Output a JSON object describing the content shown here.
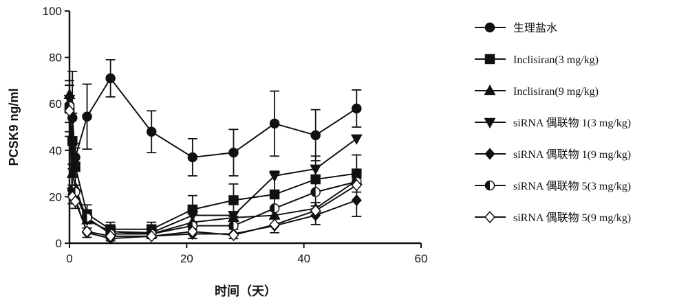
{
  "chart_data": {
    "type": "line",
    "title": "",
    "xlabel": "时间（天）",
    "ylabel": "PCSK9 ng/ml",
    "xlim": [
      0,
      60
    ],
    "ylim": [
      0,
      100
    ],
    "xticks": [
      0,
      20,
      40,
      60
    ],
    "yticks": [
      0,
      20,
      40,
      60,
      80,
      100
    ],
    "grid": false,
    "legend_position": "right",
    "x": [
      0,
      0.5,
      1,
      3,
      7,
      14,
      21,
      28,
      35,
      42,
      49
    ],
    "series": [
      {
        "name": "生理盐水",
        "marker": "circle-filled",
        "values": [
          58,
          54,
          37,
          54.5,
          71,
          48,
          37,
          39,
          51.5,
          46.5,
          58
        ],
        "error": [
          12,
          20,
          6,
          14,
          8,
          9,
          8,
          10,
          14,
          11,
          8
        ]
      },
      {
        "name": "Inclisiran(3 mg/kg)",
        "marker": "square-filled",
        "values": [
          58,
          44,
          33,
          12.5,
          6,
          6,
          14.5,
          18.5,
          21,
          27.5,
          30
        ],
        "error": [
          10,
          12,
          8,
          4,
          3,
          3,
          6,
          7,
          10,
          10,
          8
        ]
      },
      {
        "name": "Inclisiran(9 mg/kg)",
        "marker": "triangle-up-filled",
        "values": [
          64,
          30,
          24,
          10,
          5,
          4,
          9,
          11,
          12,
          15,
          27
        ]
      },
      {
        "name": "siRNA 偶联物 1(3 mg/kg)",
        "marker": "triangle-down-filled",
        "values": [
          62,
          22,
          21,
          10,
          5,
          4.5,
          12,
          12,
          29,
          32,
          45
        ]
      },
      {
        "name": "siRNA 偶联物 1(9 mg/kg)",
        "marker": "diamond-filled",
        "values": [
          60,
          21,
          19,
          4.5,
          2,
          3,
          4,
          4,
          7.5,
          12,
          18.5
        ],
        "error": [
          8,
          4,
          4,
          2,
          1,
          1,
          2,
          2,
          3,
          4,
          7
        ]
      },
      {
        "name": "siRNA 偶联物 5(3 mg/kg)",
        "marker": "circle-half",
        "values": [
          59,
          23,
          22,
          11,
          4,
          4,
          7.5,
          7.5,
          15,
          22,
          26.5
        ]
      },
      {
        "name": "siRNA 偶联物 5(9 mg/kg)",
        "marker": "diamond-open",
        "values": [
          57,
          20,
          18,
          5,
          3,
          3,
          5,
          3.5,
          8,
          14,
          25
        ]
      }
    ]
  }
}
